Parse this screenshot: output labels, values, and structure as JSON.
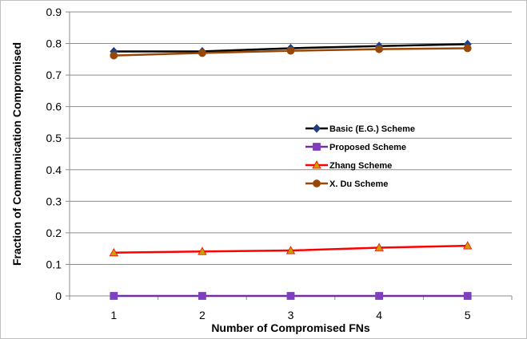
{
  "chart_data": {
    "type": "line",
    "title": "",
    "xlabel": "Number of Compromised FNs",
    "ylabel": "Fraction of Communication Compromised",
    "x": [
      1,
      2,
      3,
      4,
      5
    ],
    "xlim": [
      0.5,
      5.5
    ],
    "ylim": [
      0,
      0.9
    ],
    "yticks": [
      "0",
      "0.1",
      "0.2",
      "0.3",
      "0.4",
      "0.5",
      "0.6",
      "0.7",
      "0.8",
      "0.9"
    ],
    "xticks": [
      "1",
      "2",
      "3",
      "4",
      "5"
    ],
    "grid": "horizontal",
    "legend_position": "center-right",
    "series": [
      {
        "name": "Basic (E.G.) Scheme",
        "values": [
          0.775,
          0.775,
          0.785,
          0.792,
          0.798
        ],
        "color": "#000000",
        "marker": "diamond",
        "marker_color": "#1f3f7f"
      },
      {
        "name": "Proposed Scheme",
        "values": [
          0.0,
          0.0,
          0.0,
          0.0,
          0.0
        ],
        "color": "#7030a0",
        "marker": "square",
        "marker_color": "#7f3fbf"
      },
      {
        "name": "Zhang Scheme",
        "values": [
          0.137,
          0.141,
          0.144,
          0.153,
          0.159
        ],
        "color": "#ff0000",
        "marker": "triangle",
        "marker_color": "#c8a000"
      },
      {
        "name": "X. Du Scheme",
        "values": [
          0.762,
          0.77,
          0.777,
          0.782,
          0.785
        ],
        "color": "#974706",
        "marker": "circle",
        "marker_color": "#974706"
      }
    ]
  }
}
